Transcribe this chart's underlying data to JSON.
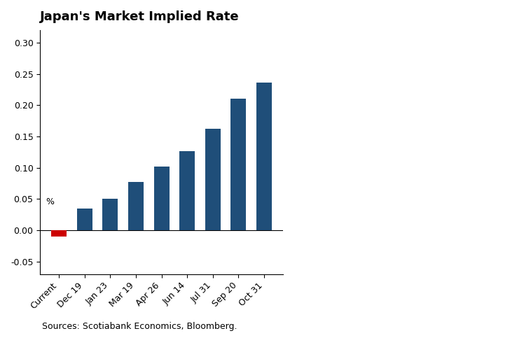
{
  "title": "Japan's Market Implied Rate",
  "ylabel": "%",
  "categories": [
    "Current",
    "Dec 19",
    "Jan 23",
    "Mar 19",
    "Apr 26",
    "Jun 14",
    "Jul 31",
    "Sep 20",
    "Oct 31"
  ],
  "values": [
    -0.01,
    0.035,
    0.05,
    0.077,
    0.102,
    0.127,
    0.162,
    0.21,
    0.236
  ],
  "bar_colors": [
    "#cc0000",
    "#1f4e79",
    "#1f4e79",
    "#1f4e79",
    "#1f4e79",
    "#1f4e79",
    "#1f4e79",
    "#1f4e79",
    "#1f4e79"
  ],
  "ylim": [
    -0.07,
    0.32
  ],
  "yticks": [
    -0.05,
    0.0,
    0.05,
    0.1,
    0.15,
    0.2,
    0.25,
    0.3
  ],
  "source_text": "Sources: Scotiabank Economics, Bloomberg.",
  "background_color": "#ffffff",
  "chart_area_color": "#ffffff",
  "title_fontsize": 13,
  "tick_fontsize": 9,
  "source_fontsize": 9
}
